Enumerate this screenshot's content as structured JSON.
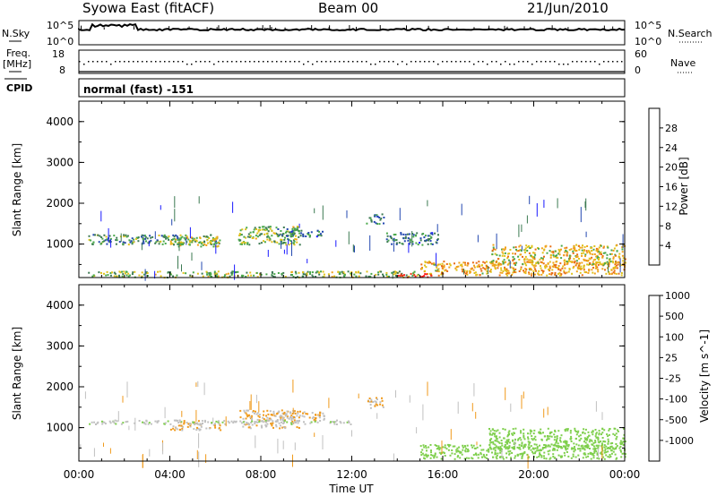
{
  "header": {
    "station": "Syowa East (fitACF)",
    "beam": "Beam 00",
    "date": "21/Jun/2010"
  },
  "noise_panel": {
    "left_label": "N.Sky",
    "right_label": "N.Search",
    "left_ticks": [
      "10^5",
      "10^0"
    ],
    "right_ticks": [
      "10^5",
      "10^0"
    ]
  },
  "freq_panel": {
    "left_label_1": "Freq.",
    "left_label_2": "[MHz]",
    "right_label": "Nave",
    "left_ticks": [
      "18",
      "8"
    ],
    "right_ticks": [
      "60",
      "0"
    ]
  },
  "cpid": {
    "label": "CPID",
    "value": "normal (fast) -151"
  },
  "x_axis": {
    "ticks": [
      "00:00",
      "04:00",
      "08:00",
      "12:00",
      "16:00",
      "20:00",
      "00:00"
    ],
    "label": "Time UT"
  },
  "colors": {
    "power": [
      "#1a1aff",
      "#2348b0",
      "#3c7a52",
      "#49a84b",
      "#e0c21b",
      "#f0a21b",
      "#e86d13",
      "#e33b12",
      "#ff1a1a"
    ],
    "velocity": [
      "#ff1a1a",
      "#f0640f",
      "#f09a1b",
      "#c0c0c0",
      "#7fcf4d",
      "#3e9e3e",
      "#2c6cb0",
      "#2030c0"
    ],
    "velocity_ground": "#bfbfbf"
  },
  "chart_data": [
    {
      "type": "heatmap",
      "title": "Power",
      "ylabel": "Slant Range [km]",
      "xlabel": "Time UT",
      "x_range_hours": [
        0,
        24
      ],
      "ylim": [
        180,
        4500
      ],
      "y_ticks": [
        1000,
        2000,
        3000,
        4000
      ],
      "colorbar": {
        "label": "Power [dB]",
        "range": [
          0,
          30
        ],
        "ticks": [
          "4",
          "8",
          "12",
          "16",
          "20",
          "24",
          "28"
        ]
      },
      "echo_regions": [
        {
          "t": [
            0.4,
            6.2
          ],
          "range": [
            1000,
            1250
          ],
          "value_db": 10
        },
        {
          "t": [
            4.0,
            6.2
          ],
          "range": [
            950,
            1200
          ],
          "value_db": 14
        },
        {
          "t": [
            7.0,
            9.7
          ],
          "range": [
            1000,
            1450
          ],
          "value_db": 12
        },
        {
          "t": [
            8.6,
            10.8
          ],
          "range": [
            1200,
            1400
          ],
          "value_db": 8
        },
        {
          "t": [
            13.5,
            15.8
          ],
          "range": [
            1000,
            1300
          ],
          "value_db": 8
        },
        {
          "t": [
            12.6,
            13.4
          ],
          "range": [
            1500,
            1750
          ],
          "value_db": 8
        },
        {
          "t": [
            15.0,
            24.0
          ],
          "range": [
            250,
            600
          ],
          "value_db": 18
        },
        {
          "t": [
            18.0,
            24.0
          ],
          "range": [
            500,
            1000
          ],
          "value_db": 16
        },
        {
          "t": [
            0.3,
            15.0
          ],
          "range": [
            200,
            350
          ],
          "value_db": 12
        },
        {
          "t": [
            14.0,
            15.5
          ],
          "range": [
            200,
            300
          ],
          "value_db": 28
        }
      ]
    },
    {
      "type": "heatmap",
      "title": "Velocity",
      "ylabel": "Slant Range [km]",
      "xlabel": "Time UT",
      "x_range_hours": [
        0,
        24
      ],
      "ylim": [
        180,
        4500
      ],
      "y_ticks": [
        1000,
        2000,
        3000,
        4000
      ],
      "colorbar": {
        "label": "Velocity [m s^-1]",
        "range": [
          -1200,
          1200
        ],
        "ticks": [
          "-1000",
          "-500",
          "-100",
          "-25",
          "25",
          "100",
          "500",
          "1000"
        ]
      },
      "echo_regions": [
        {
          "t": [
            4.0,
            6.2
          ],
          "range": [
            950,
            1200
          ],
          "value_ms": -100
        },
        {
          "t": [
            7.0,
            9.7
          ],
          "range": [
            1000,
            1450
          ],
          "value_ms": -100
        },
        {
          "t": [
            8.6,
            10.8
          ],
          "range": [
            1200,
            1400
          ],
          "value_ms": -100
        },
        {
          "t": [
            12.6,
            13.4
          ],
          "range": [
            1500,
            1750
          ],
          "value_ms": -100
        },
        {
          "t": [
            0.4,
            12.0
          ],
          "range": [
            1100,
            1200
          ],
          "value_ms": 0
        },
        {
          "t": [
            15.0,
            24.0
          ],
          "range": [
            250,
            600
          ],
          "value_ms": 100
        },
        {
          "t": [
            18.0,
            24.0
          ],
          "range": [
            500,
            1000
          ],
          "value_ms": 100
        }
      ]
    }
  ]
}
